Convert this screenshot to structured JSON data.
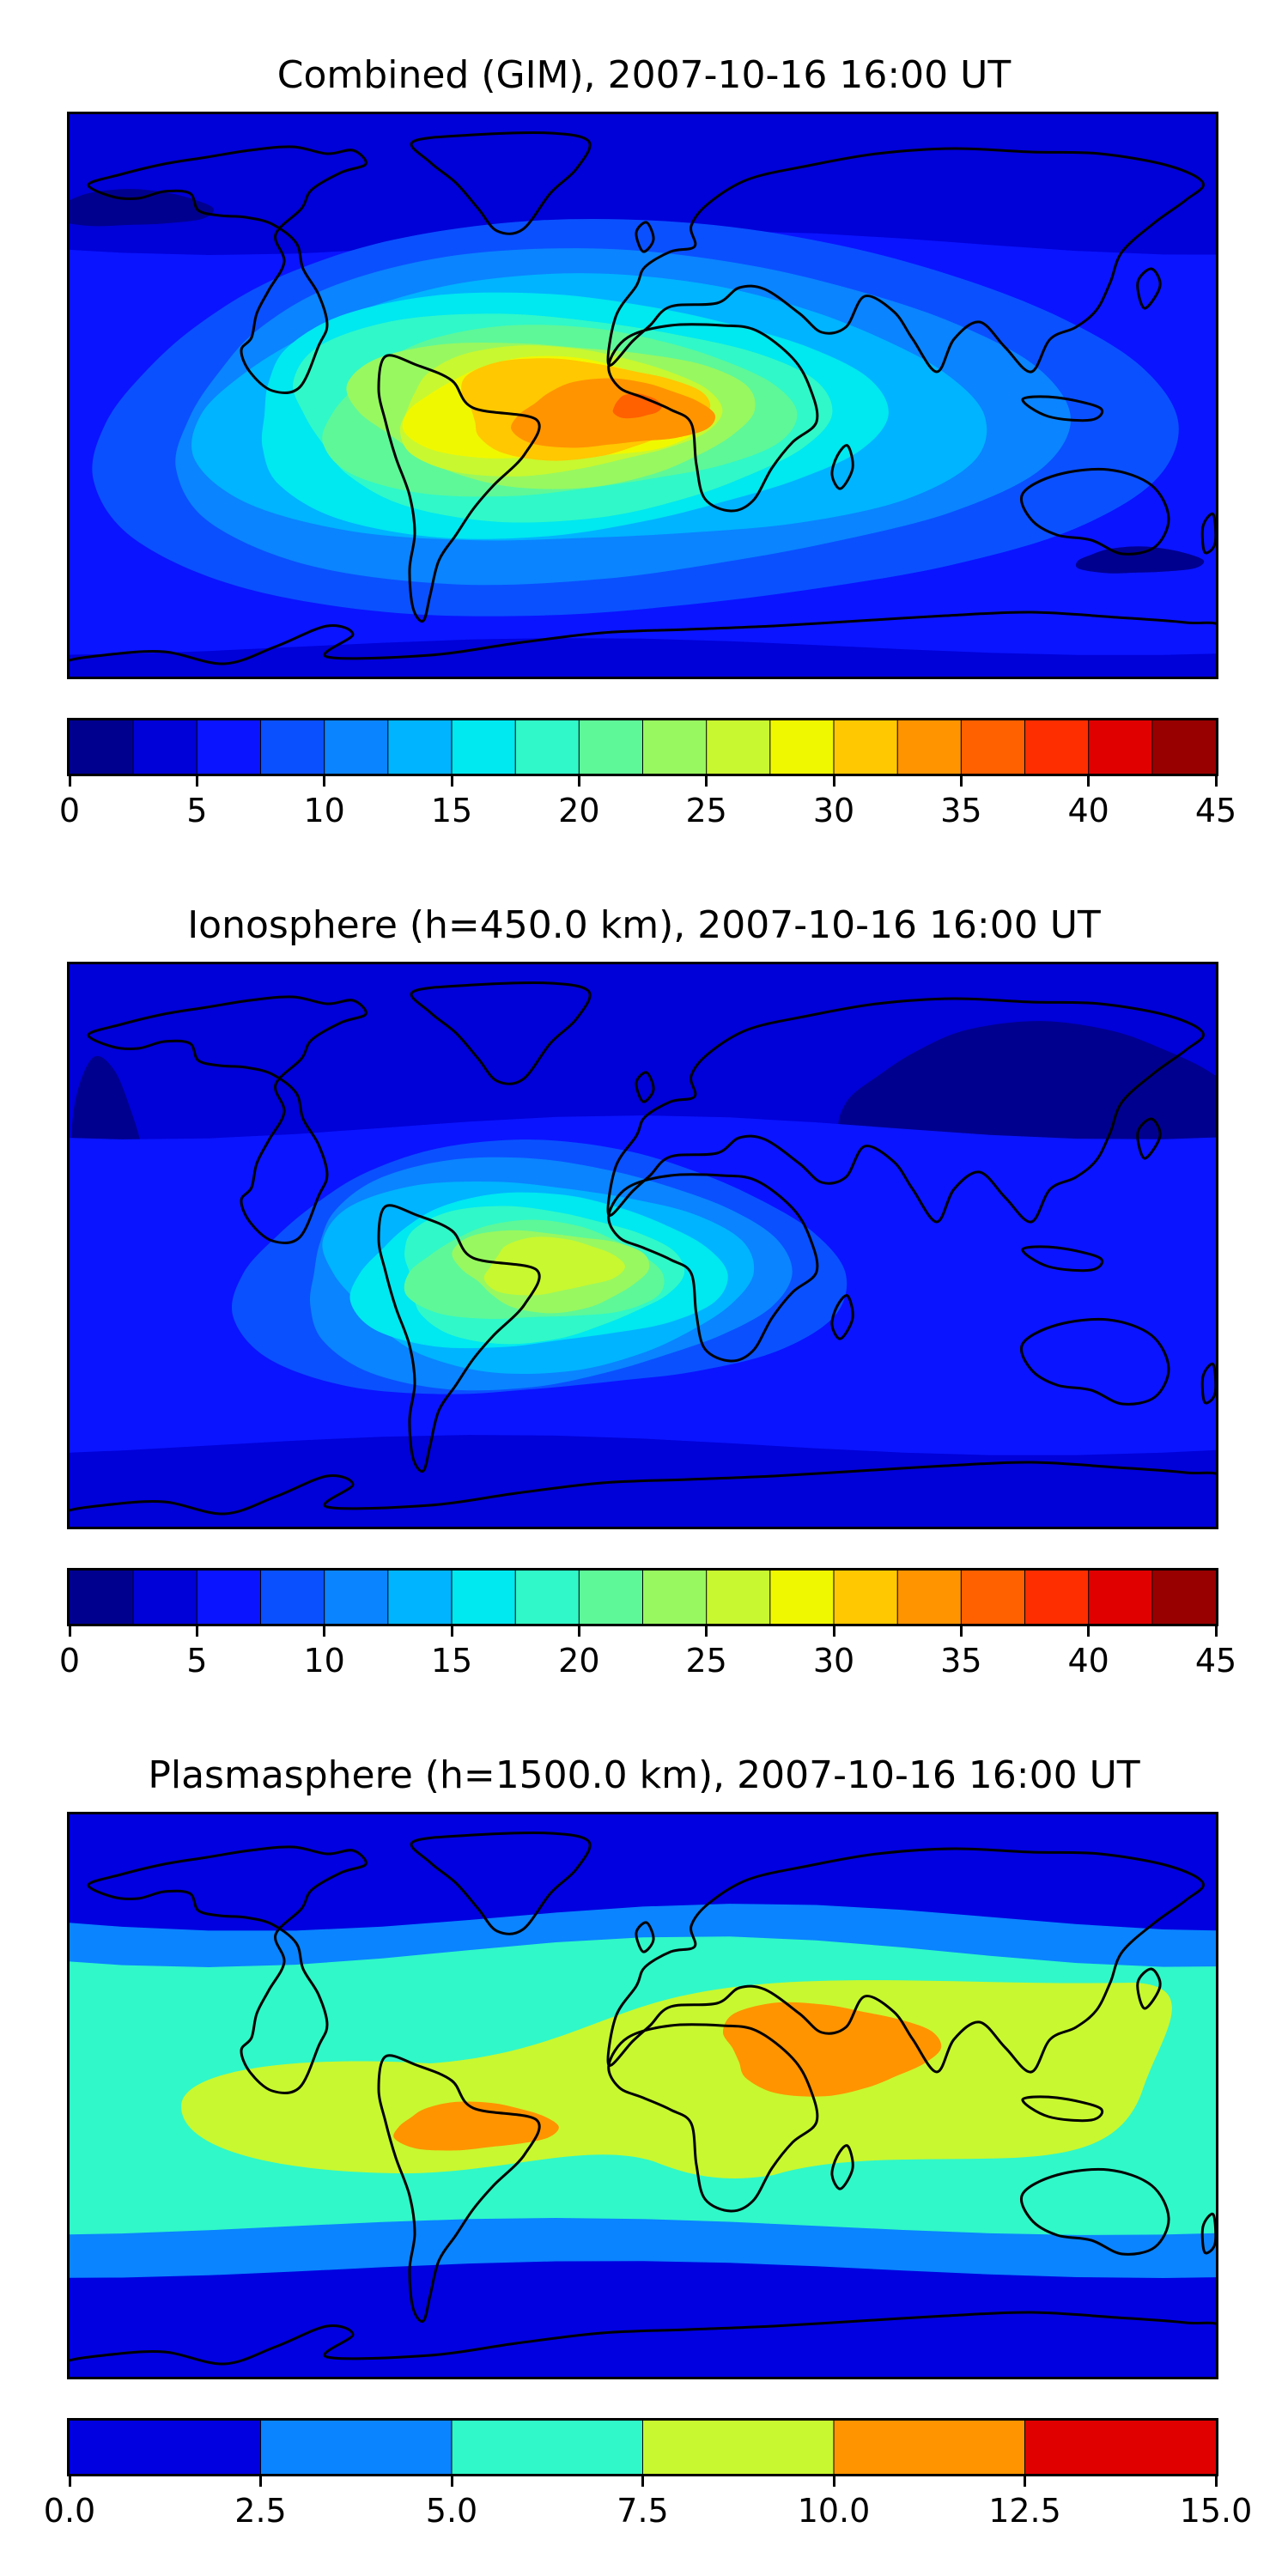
{
  "panels": [
    {
      "title": "Combined (GIM), 2007-10-16 16:00 UT",
      "field": "combined",
      "colorbar": {
        "levels": [
          0,
          2.5,
          5,
          7.5,
          10,
          12.5,
          15,
          17.5,
          20,
          22.5,
          25,
          27.5,
          30,
          32.5,
          35,
          37.5,
          40,
          42.5,
          45
        ],
        "colors": [
          "#00008f",
          "#0000d8",
          "#0a14ff",
          "#0a50ff",
          "#0a84ff",
          "#00b4ff",
          "#00e8f0",
          "#30f8c8",
          "#5ef898",
          "#98f860",
          "#c8f830",
          "#f0f800",
          "#ffc800",
          "#ff9400",
          "#ff6000",
          "#ff2e00",
          "#e00000",
          "#980000"
        ],
        "tick_labels": [
          "0",
          "5",
          "10",
          "15",
          "20",
          "25",
          "30",
          "35",
          "40",
          "45"
        ]
      }
    },
    {
      "title": "Ionosphere  (h=450.0 km), 2007-10-16 16:00 UT",
      "field": "ionosphere",
      "colorbar": {
        "levels": [
          0,
          2.5,
          5,
          7.5,
          10,
          12.5,
          15,
          17.5,
          20,
          22.5,
          25,
          27.5,
          30,
          32.5,
          35,
          37.5,
          40,
          42.5,
          45
        ],
        "colors": [
          "#00008f",
          "#0000d8",
          "#0a14ff",
          "#0a50ff",
          "#0a84ff",
          "#00b4ff",
          "#00e8f0",
          "#30f8c8",
          "#5ef898",
          "#98f860",
          "#c8f830",
          "#f0f800",
          "#ffc800",
          "#ff9400",
          "#ff6000",
          "#ff2e00",
          "#e00000",
          "#980000"
        ],
        "tick_labels": [
          "0",
          "5",
          "10",
          "15",
          "20",
          "25",
          "30",
          "35",
          "40",
          "45"
        ]
      }
    },
    {
      "title": "Plasmasphere (h=1500.0 km), 2007-10-16 16:00 UT",
      "field": "plasmasphere",
      "colorbar": {
        "levels": [
          0,
          2.5,
          5,
          7.5,
          10,
          12.5,
          15
        ],
        "colors": [
          "#0000e0",
          "#0a84ff",
          "#30f8c8",
          "#c8f830",
          "#ff9400",
          "#e00000"
        ],
        "tick_labels": [
          "0.0",
          "2.5",
          "5.0",
          "7.5",
          "10.0",
          "12.5",
          "15.0"
        ]
      }
    }
  ]
}
